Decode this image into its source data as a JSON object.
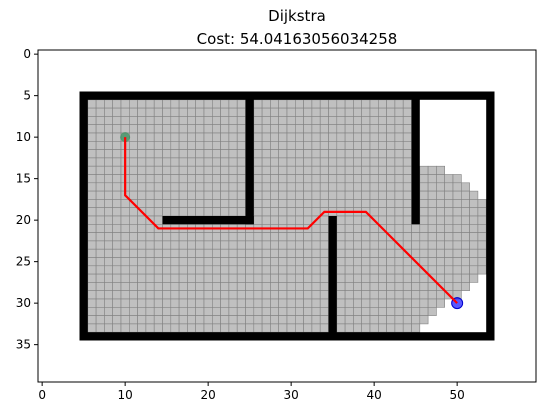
{
  "chart_data": {
    "type": "grid-path",
    "title": "Dijkstra",
    "subtitle": "Cost: 54.04163056034258",
    "xlabel": "",
    "ylabel": "",
    "xlim": [
      -0.5,
      59.5
    ],
    "ylim": [
      39.5,
      -0.5
    ],
    "y_inverted": true,
    "grid": false,
    "x_ticks": [
      0,
      10,
      20,
      30,
      40,
      50
    ],
    "y_ticks": [
      0,
      5,
      10,
      15,
      20,
      25,
      30,
      35
    ],
    "walls": [
      {
        "x": [
          5,
          54
        ],
        "y": [
          5,
          5
        ]
      },
      {
        "x": [
          5,
          54
        ],
        "y": [
          34,
          34
        ]
      },
      {
        "x": [
          5,
          5
        ],
        "y": [
          5,
          34
        ]
      },
      {
        "x": [
          54,
          54
        ],
        "y": [
          5,
          34
        ]
      },
      {
        "x": [
          25,
          25
        ],
        "y": [
          5,
          20
        ]
      },
      {
        "x": [
          15,
          25
        ],
        "y": [
          20,
          20
        ]
      },
      {
        "x": [
          45,
          45
        ],
        "y": [
          5,
          20
        ]
      },
      {
        "x": [
          35,
          35
        ],
        "y": [
          20,
          34
        ]
      }
    ],
    "explored_region": {
      "main": {
        "x": [
          6,
          44
        ],
        "y": [
          6,
          33
        ]
      },
      "right_profile": [
        {
          "y": [
            13,
            33
          ],
          "x_max": 45
        },
        {
          "y": [
            14,
            32
          ],
          "x_max": 46
        },
        {
          "y": [
            14,
            31
          ],
          "x_max": 47
        },
        {
          "y": [
            14,
            30
          ],
          "x_max": 48
        },
        {
          "y": [
            15,
            29
          ],
          "x_max": 50
        },
        {
          "y": [
            16,
            28
          ],
          "x_max": 51
        },
        {
          "y": [
            17,
            27
          ],
          "x_max": 52
        },
        {
          "y": [
            18,
            26
          ],
          "x_max": 53
        }
      ]
    },
    "path": {
      "color": "#ff0000",
      "x": [
        10,
        10,
        14,
        32,
        34,
        39,
        50
      ],
      "y": [
        10,
        17,
        21,
        21,
        19,
        19,
        30
      ]
    },
    "start": {
      "x": 10,
      "y": 10,
      "color": "#2e8b57"
    },
    "goal": {
      "x": 50,
      "y": 30,
      "color": "#0000ff"
    },
    "colors": {
      "wall": "#000000",
      "explored_fill": "#c0c0c0",
      "explored_edge": "#808080"
    }
  }
}
